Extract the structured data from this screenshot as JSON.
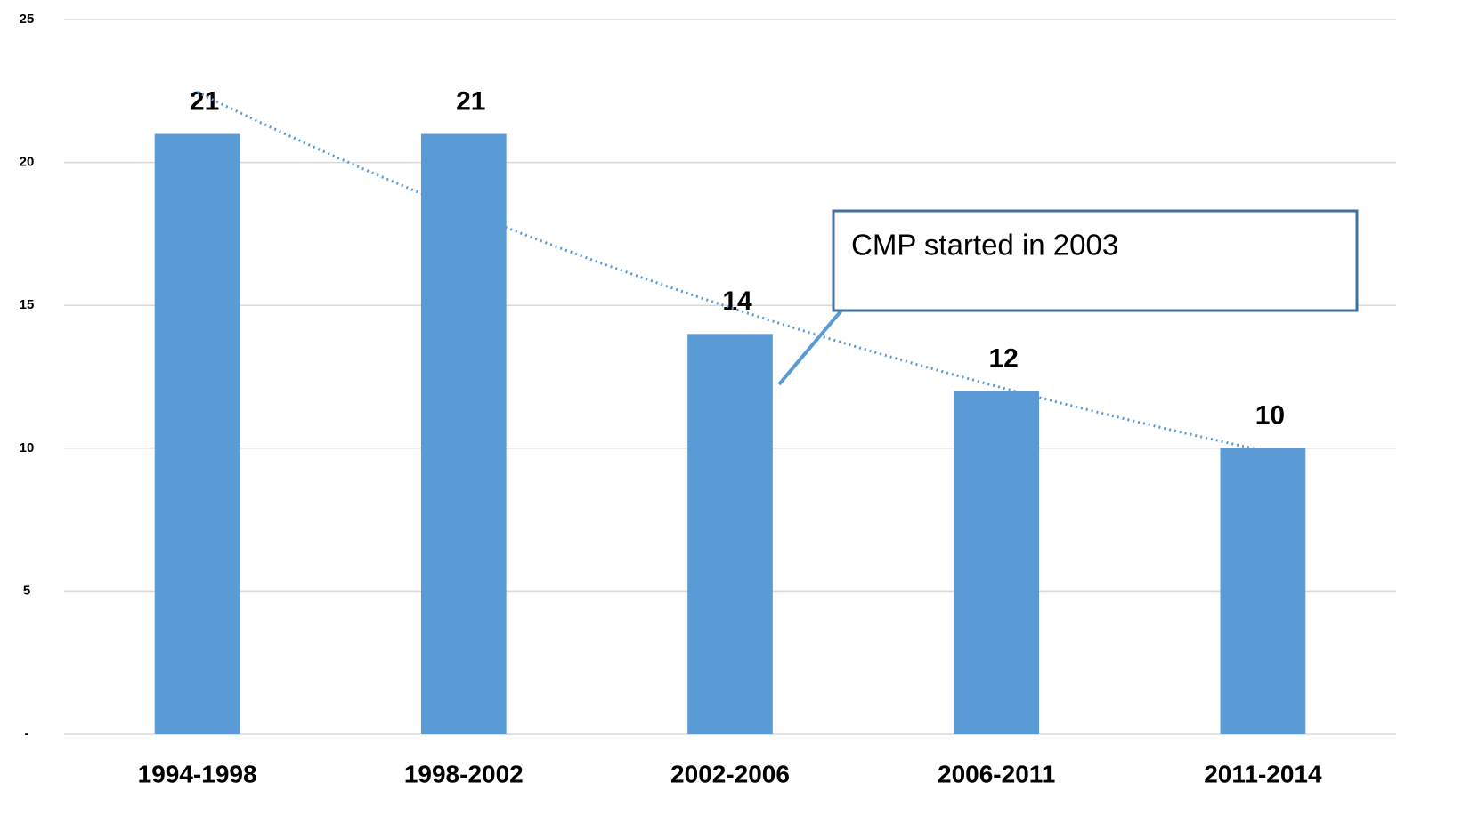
{
  "chart_data": {
    "type": "bar",
    "categories": [
      "1994-1998",
      "1998-2002",
      "2002-2006",
      "2006-2011",
      "2011-2014"
    ],
    "values": [
      21,
      21,
      14,
      12,
      10
    ],
    "color": "#5b9bd5",
    "ylim": [
      0,
      25
    ],
    "yticks": [
      {
        "value": 0,
        "label": "-"
      },
      5,
      10,
      15,
      20,
      25
    ],
    "grid": true,
    "trendline": "exponential",
    "annotation": "CMP started in 2003"
  }
}
